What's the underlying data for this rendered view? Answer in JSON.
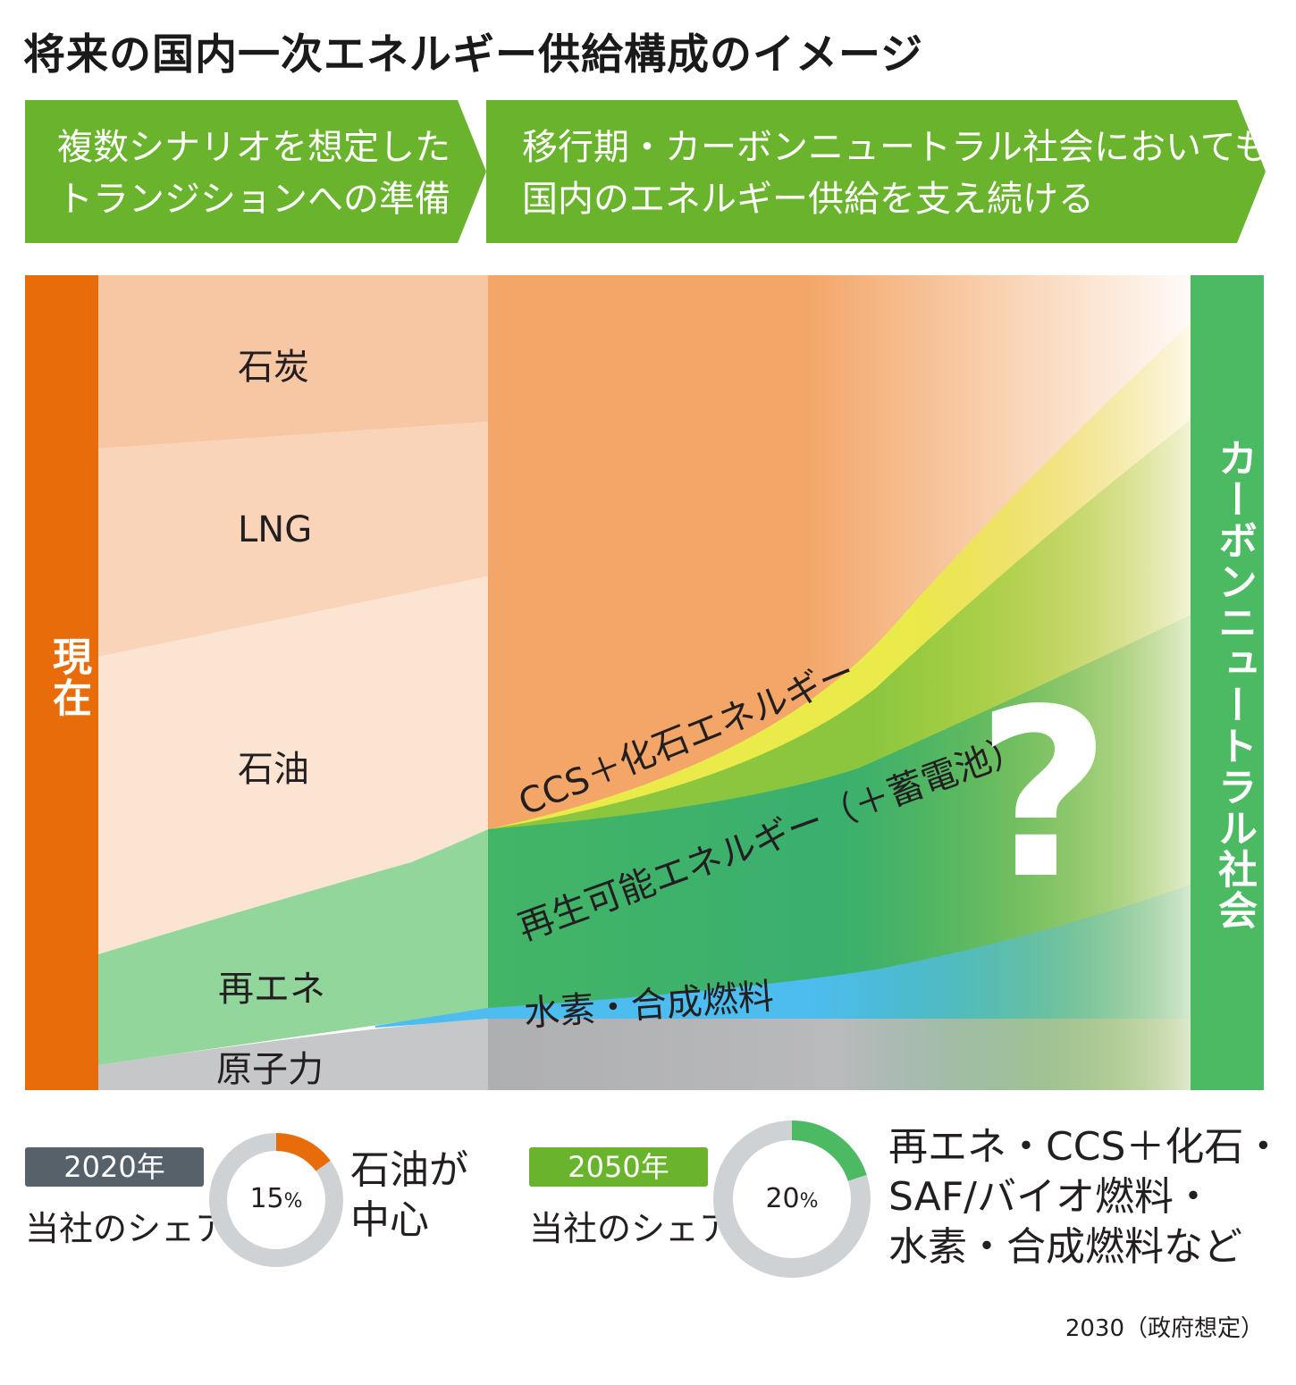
{
  "title": "将来の国内一次エネルギー供給構成のイメージ",
  "banners": [
    {
      "line1": "複数シナリオを想定した",
      "line2": "トランジションへの準備"
    },
    {
      "line1": "移行期・カーボンニュートラル社会においても、",
      "line2": "国内のエネルギー供給を支え続ける"
    }
  ],
  "left_bar_label": "現在",
  "right_bar_label": "カーボンニュートラル社会",
  "current_mix_labels": {
    "coal": "石炭",
    "lng": "LNG",
    "oil": "石油",
    "renewable": "再エネ",
    "nuclear": "原子力"
  },
  "future_labels": {
    "ccs": "CCS＋化石エネルギー",
    "renewable": "再生可能エネルギー（＋蓄電池）",
    "hydrogen": "水素・合成燃料"
  },
  "question_mark": "?",
  "share_2020": {
    "year": "2020年",
    "label": "当社のシェア",
    "percent_value": 15,
    "percent_num": "15",
    "percent_unit": "%",
    "desc_line1": "石油が",
    "desc_line2": "中心"
  },
  "share_2050": {
    "year": "2050年",
    "label": "当社のシェア",
    "percent_value": 20,
    "percent_num": "20",
    "percent_unit": "%",
    "desc_line1": "再エネ・CCS＋化石・",
    "desc_line2": "SAF/バイオ燃料・",
    "desc_line3": "水素・合成燃料など"
  },
  "note": "2030（政府想定）",
  "colors": {
    "green_banner": "#6ab42d",
    "orange_bar": "#e96c0a",
    "green_bar": "#4cb963",
    "coal": "#f7c6a3",
    "lng": "#f9d4b9",
    "oil": "#fbe4d2",
    "renewable_now": "#93d69b",
    "nuclear": "#c6c7c9",
    "fossil_future": "#f3a668",
    "ccs_yellow": "#eaea4a",
    "ccs_green": "#8cc63f",
    "renewable_future": "#43b567",
    "hydrogen": "#4dbdf0",
    "nuclear_future": "#aeafb1",
    "donut_track": "#cfd2d4",
    "badge_2020": "#57616a",
    "badge_2050": "#6ab42d"
  }
}
